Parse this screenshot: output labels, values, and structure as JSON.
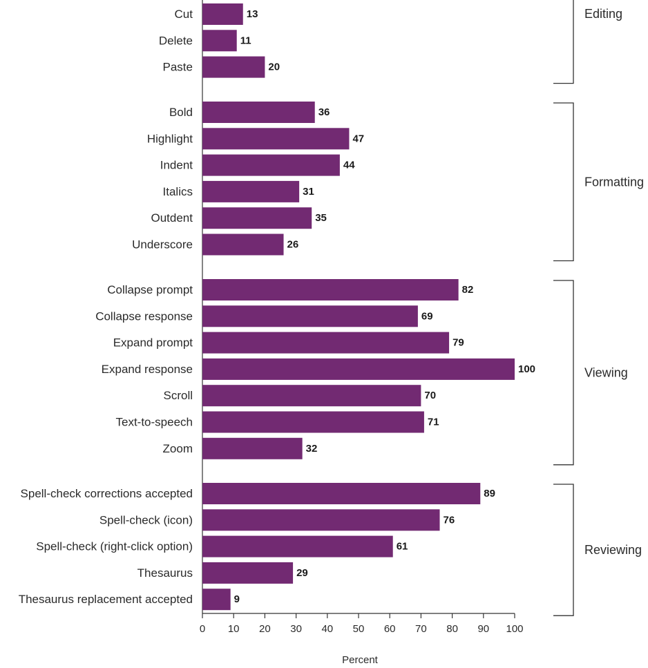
{
  "chart_data": {
    "type": "bar",
    "orientation": "horizontal",
    "xlabel": "Percent",
    "xlim": [
      0,
      100
    ],
    "xticks": [
      "0",
      "10",
      "20",
      "30",
      "40",
      "50",
      "60",
      "70",
      "80",
      "90",
      "100"
    ],
    "bar_color": "#722a72",
    "groups": [
      {
        "name": "Editing",
        "items": [
          {
            "label": "Cut",
            "value": 13
          },
          {
            "label": "Delete",
            "value": 11
          },
          {
            "label": "Paste",
            "value": 20
          }
        ]
      },
      {
        "name": "Formatting",
        "items": [
          {
            "label": "Bold",
            "value": 36
          },
          {
            "label": "Highlight",
            "value": 47
          },
          {
            "label": "Indent",
            "value": 44
          },
          {
            "label": "Italics",
            "value": 31
          },
          {
            "label": "Outdent",
            "value": 35
          },
          {
            "label": "Underscore",
            "value": 26
          }
        ]
      },
      {
        "name": "Viewing",
        "items": [
          {
            "label": "Collapse prompt",
            "value": 82
          },
          {
            "label": "Collapse response",
            "value": 69
          },
          {
            "label": "Expand prompt",
            "value": 79
          },
          {
            "label": "Expand response",
            "value": 100
          },
          {
            "label": "Scroll",
            "value": 70
          },
          {
            "label": "Text-to-speech",
            "value": 71
          },
          {
            "label": "Zoom",
            "value": 32
          }
        ]
      },
      {
        "name": "Reviewing",
        "items": [
          {
            "label": "Spell-check corrections accepted",
            "value": 89
          },
          {
            "label": "Spell-check (icon)",
            "value": 76
          },
          {
            "label": "Spell-check (right-click option)",
            "value": 61
          },
          {
            "label": "Thesaurus",
            "value": 29
          },
          {
            "label": "Thesaurus replacement accepted",
            "value": 9
          }
        ]
      }
    ]
  }
}
